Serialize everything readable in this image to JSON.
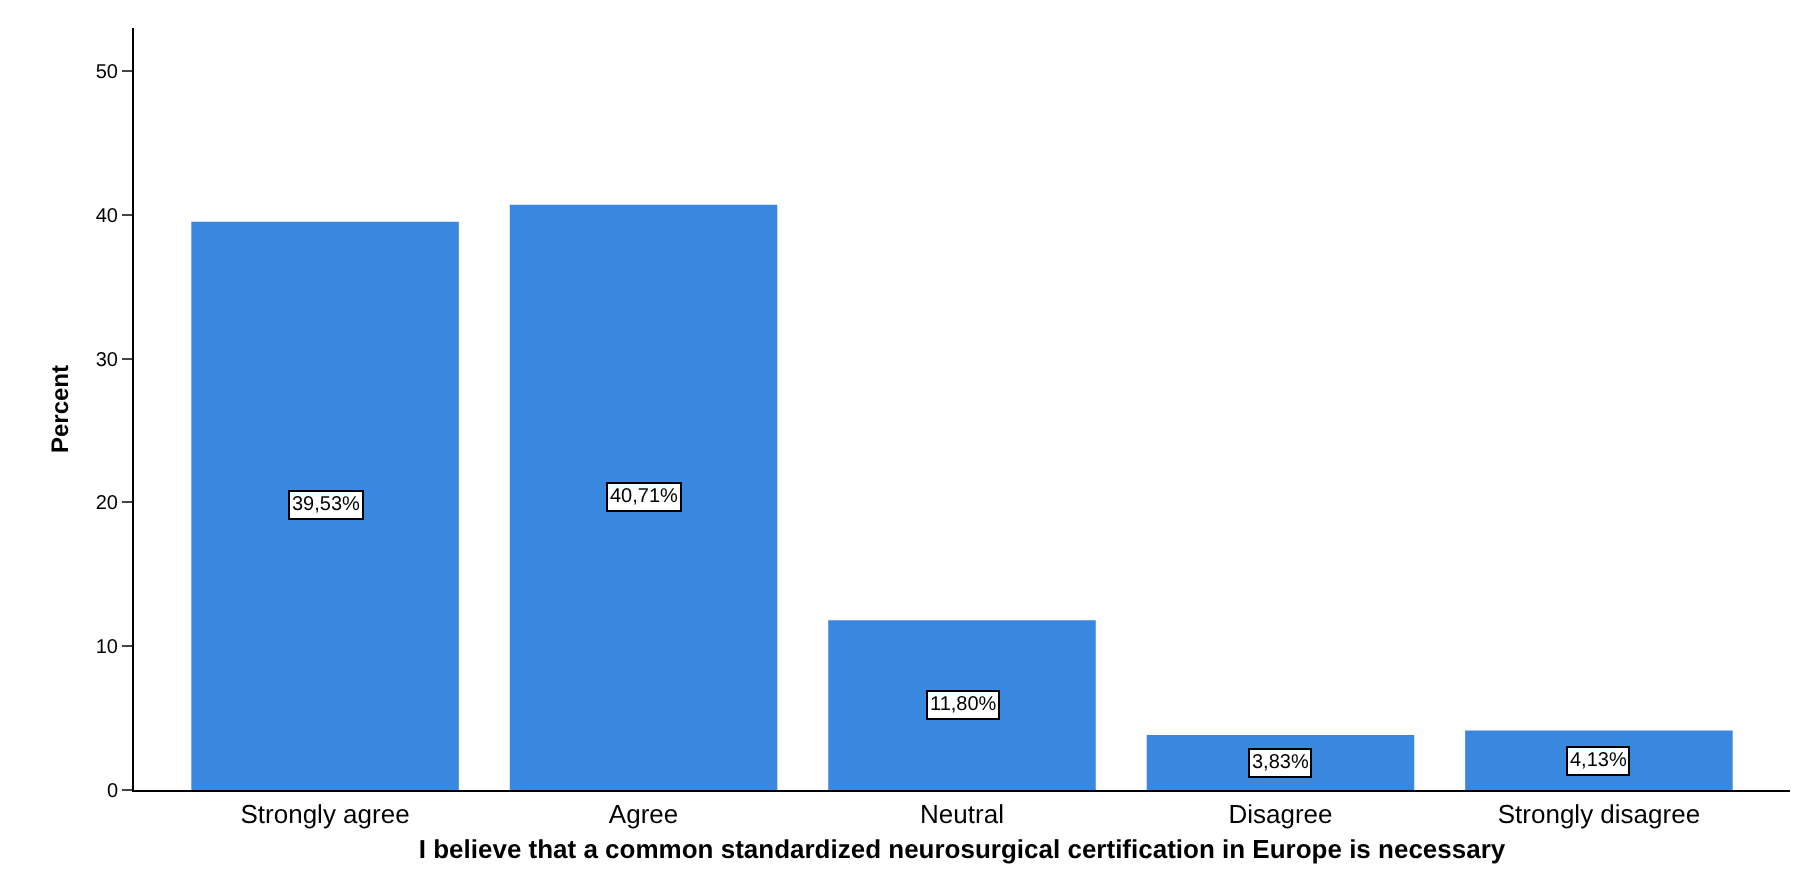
{
  "chart_data": {
    "type": "bar",
    "xlabel": "I believe that a common standardized neurosurgical certification in Europe is necessary",
    "ylabel": "Percent",
    "categories": [
      "Strongly agree",
      "Agree",
      "Neutral",
      "Disagree",
      "Strongly disagree"
    ],
    "values": [
      39.53,
      40.71,
      11.8,
      3.83,
      4.13
    ],
    "value_labels": [
      "39,53%",
      "40,71%",
      "11,80%",
      "3,83%",
      "4,13%"
    ],
    "color": "#3a87e0",
    "ylim": [
      0,
      53
    ],
    "yticks": [
      0,
      10,
      20,
      30,
      40,
      50
    ],
    "grid": false,
    "legend": false
  }
}
